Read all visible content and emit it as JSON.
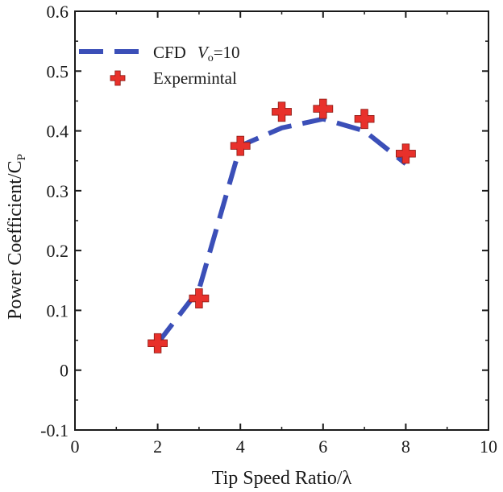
{
  "chart_data": {
    "type": "line",
    "title": "",
    "xlabel": "Tip Speed Ratio/λ",
    "ylabel": "Power Coefficient/C",
    "ylabel_sub": "P",
    "xlim": [
      0,
      10
    ],
    "ylim": [
      -0.1,
      0.6
    ],
    "x_ticks": [
      0,
      2,
      4,
      6,
      8,
      10
    ],
    "x_tick_labels": [
      "0",
      "2",
      "4",
      "6",
      "8",
      "10"
    ],
    "y_ticks": [
      -0.1,
      0,
      0.1,
      0.2,
      0.3,
      0.4,
      0.5,
      0.6
    ],
    "y_tick_labels": [
      "-0.1",
      "0",
      "0.1",
      "0.2",
      "0.3",
      "0.4",
      "0.5",
      "0.6"
    ],
    "grid": false,
    "legend_position": "top-left",
    "series": [
      {
        "name": "CFD",
        "legend_label": "CFD",
        "legend_label_v": "V",
        "legend_label_sub": "o",
        "legend_label_rest": "=10",
        "style": "dashed-line",
        "color": "#3b4fb8",
        "x": [
          2,
          3,
          4,
          5,
          6,
          7,
          8
        ],
        "y": [
          0.045,
          0.135,
          0.375,
          0.405,
          0.42,
          0.4,
          0.345
        ]
      },
      {
        "name": "Expermintal",
        "legend_label": "Expermintal",
        "style": "plus-marker",
        "color": "#e8312b",
        "x": [
          2,
          3,
          4,
          5,
          6,
          7,
          8
        ],
        "y": [
          0.045,
          0.12,
          0.375,
          0.432,
          0.437,
          0.42,
          0.362
        ]
      }
    ]
  }
}
